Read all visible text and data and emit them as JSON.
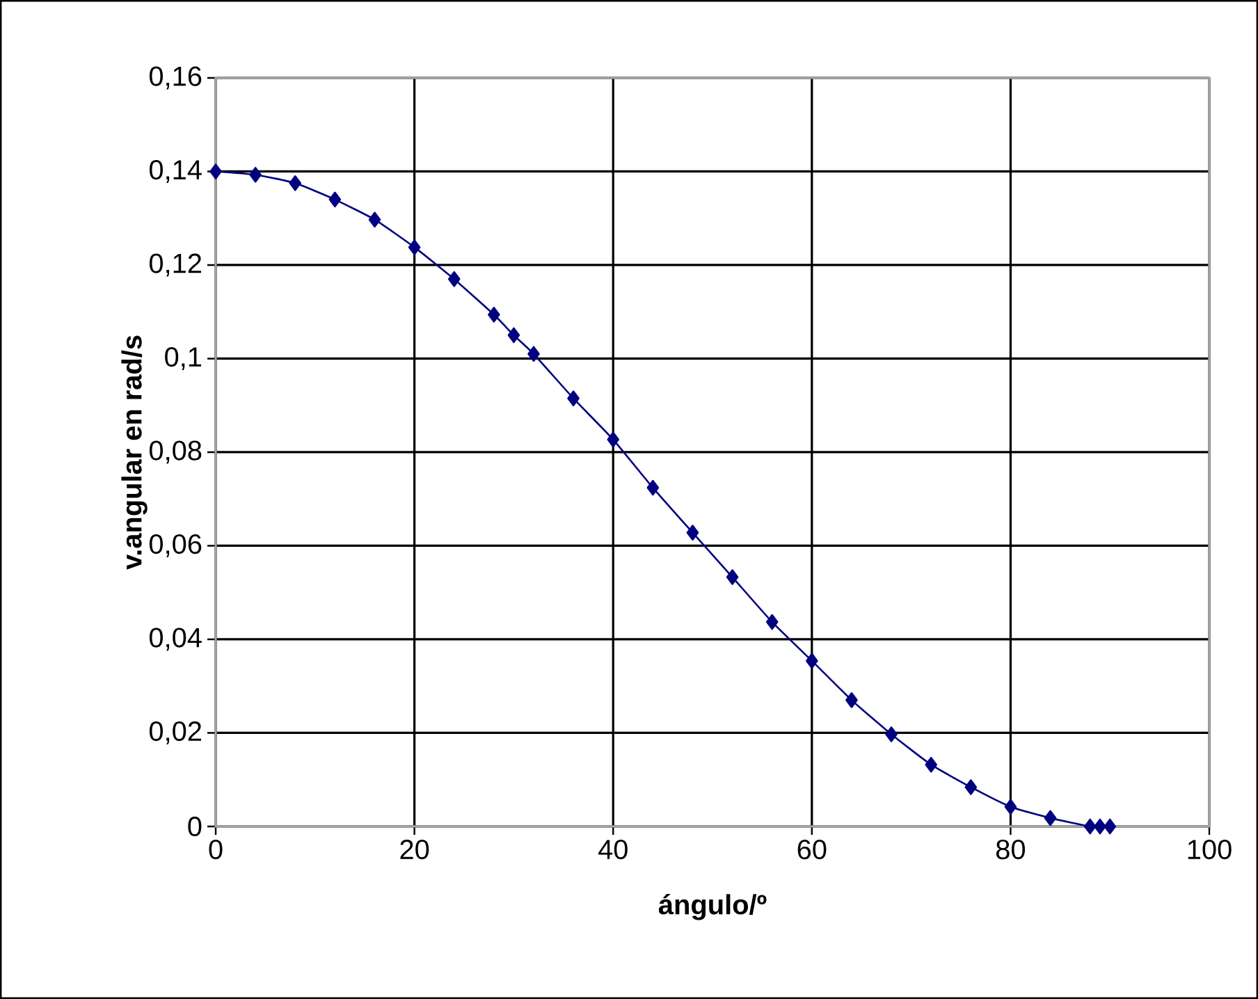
{
  "chart_data": {
    "type": "line",
    "xlabel": "ángulo/º",
    "ylabel": "v.angular en rad/s",
    "x": [
      0,
      4,
      8,
      12,
      16,
      20,
      24,
      28,
      30,
      32,
      36,
      40,
      44,
      48,
      52,
      56,
      60,
      64,
      68,
      72,
      76,
      80,
      84,
      88,
      89,
      90
    ],
    "series": [
      {
        "color": "#000080",
        "values": [
          0.14,
          0.1393,
          0.1375,
          0.134,
          0.1297,
          0.1238,
          0.117,
          0.1094,
          0.105,
          0.101,
          0.0915,
          0.0827,
          0.0724,
          0.0628,
          0.0533,
          0.0437,
          0.0354,
          0.027,
          0.0197,
          0.0132,
          0.0084,
          0.0042,
          0.0018,
          0,
          0,
          0
        ]
      }
    ],
    "xlim": [
      0,
      100
    ],
    "ylim": [
      0,
      0.16
    ],
    "xticks": [
      0,
      20,
      40,
      60,
      80,
      100
    ],
    "yticks": [
      0,
      {
        "value": 0.02,
        "label": "0,02"
      },
      {
        "value": 0.04,
        "label": "0,04"
      },
      {
        "value": 0.06,
        "label": "0,06"
      },
      {
        "value": 0.08,
        "label": "0,08"
      },
      {
        "value": 0.1,
        "label": "0,1"
      },
      {
        "value": 0.12,
        "label": "0,12"
      },
      {
        "value": 0.14,
        "label": "0,14"
      },
      {
        "value": 0.16,
        "label": "0,16"
      }
    ],
    "grid": true,
    "marker": "diamond",
    "line_style": "solid"
  }
}
